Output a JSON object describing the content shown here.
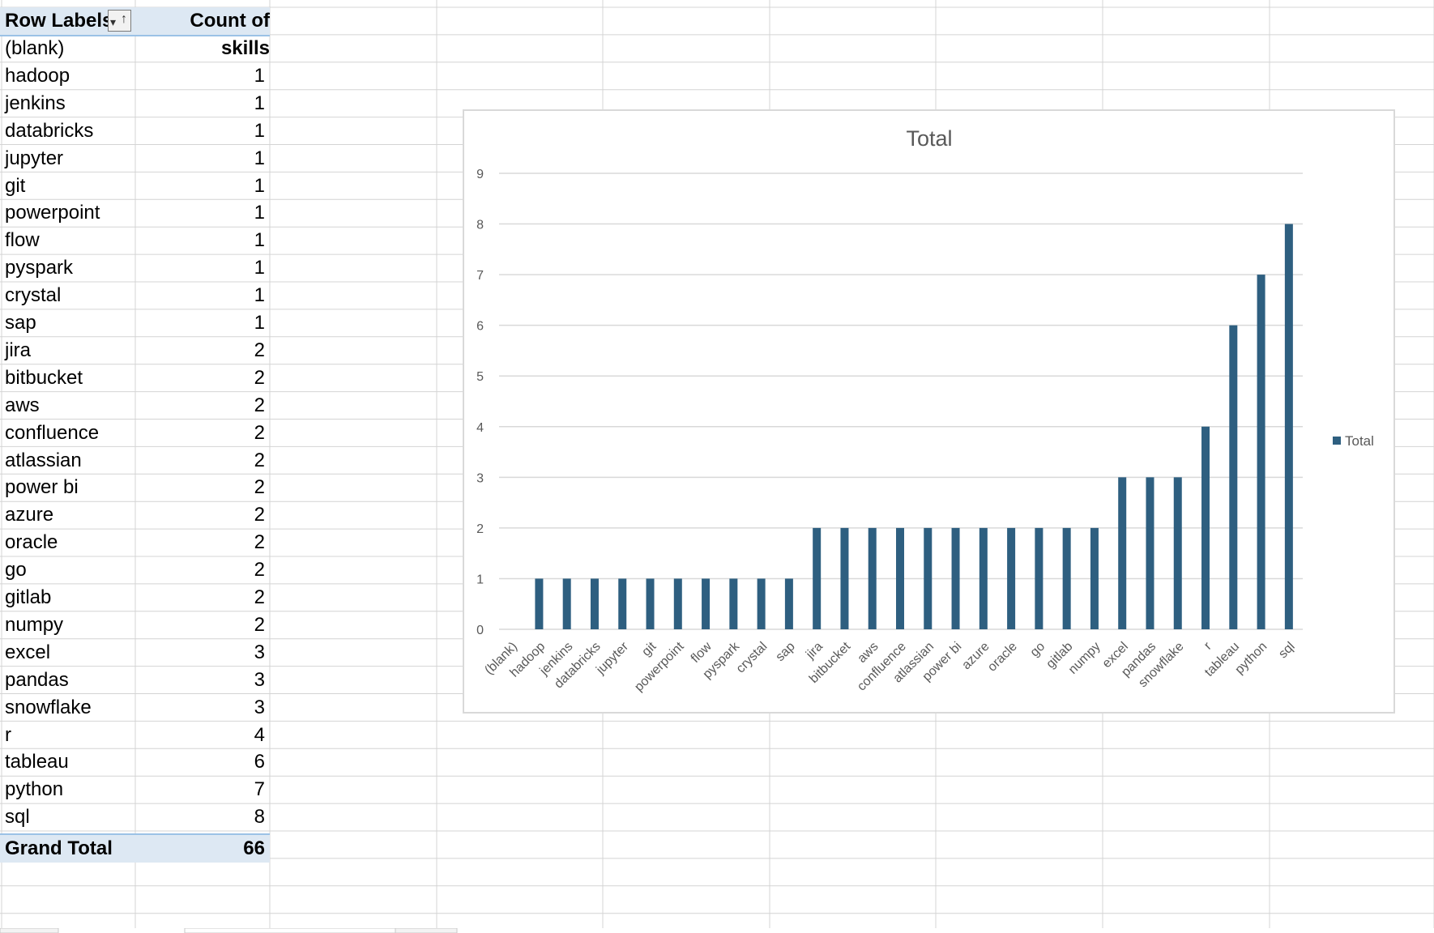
{
  "pivot": {
    "header_row_label": "Row Labels",
    "header_value_label": "Count of skills",
    "filter_icon": "filter-sort-ascending-icon",
    "rows": [
      {
        "label": "(blank)",
        "value": ""
      },
      {
        "label": "hadoop",
        "value": "1"
      },
      {
        "label": "jenkins",
        "value": "1"
      },
      {
        "label": "databricks",
        "value": "1"
      },
      {
        "label": "jupyter",
        "value": "1"
      },
      {
        "label": "git",
        "value": "1"
      },
      {
        "label": "powerpoint",
        "value": "1"
      },
      {
        "label": "flow",
        "value": "1"
      },
      {
        "label": "pyspark",
        "value": "1"
      },
      {
        "label": "crystal",
        "value": "1"
      },
      {
        "label": "sap",
        "value": "1"
      },
      {
        "label": "jira",
        "value": "2"
      },
      {
        "label": "bitbucket",
        "value": "2"
      },
      {
        "label": "aws",
        "value": "2"
      },
      {
        "label": "confluence",
        "value": "2"
      },
      {
        "label": "atlassian",
        "value": "2"
      },
      {
        "label": "power bi",
        "value": "2"
      },
      {
        "label": "azure",
        "value": "2"
      },
      {
        "label": "oracle",
        "value": "2"
      },
      {
        "label": "go",
        "value": "2"
      },
      {
        "label": "gitlab",
        "value": "2"
      },
      {
        "label": "numpy",
        "value": "2"
      },
      {
        "label": "excel",
        "value": "3"
      },
      {
        "label": "pandas",
        "value": "3"
      },
      {
        "label": "snowflake",
        "value": "3"
      },
      {
        "label": "r",
        "value": "4"
      },
      {
        "label": "tableau",
        "value": "6"
      },
      {
        "label": "python",
        "value": "7"
      },
      {
        "label": "sql",
        "value": "8"
      }
    ],
    "grand_total_label": "Grand Total",
    "grand_total_value": "66"
  },
  "chart_data": {
    "type": "bar",
    "title": "Total",
    "xlabel": "",
    "ylabel": "",
    "categories": [
      "(blank)",
      "hadoop",
      "jenkins",
      "databricks",
      "jupyter",
      "git",
      "powerpoint",
      "flow",
      "pyspark",
      "crystal",
      "sap",
      "jira",
      "bitbucket",
      "aws",
      "confluence",
      "atlassian",
      "power bi",
      "azure",
      "oracle",
      "go",
      "gitlab",
      "numpy",
      "excel",
      "pandas",
      "snowflake",
      "r",
      "tableau",
      "python",
      "sql"
    ],
    "series": [
      {
        "name": "Total",
        "color": "#2e5f80",
        "values": [
          0,
          1,
          1,
          1,
          1,
          1,
          1,
          1,
          1,
          1,
          1,
          2,
          2,
          2,
          2,
          2,
          2,
          2,
          2,
          2,
          2,
          2,
          3,
          3,
          3,
          4,
          6,
          7,
          8
        ]
      }
    ],
    "ylim": [
      0,
      9
    ],
    "yticks": [
      0,
      1,
      2,
      3,
      4,
      5,
      6,
      7,
      8,
      9
    ],
    "grid": true,
    "legend_position": "right"
  }
}
